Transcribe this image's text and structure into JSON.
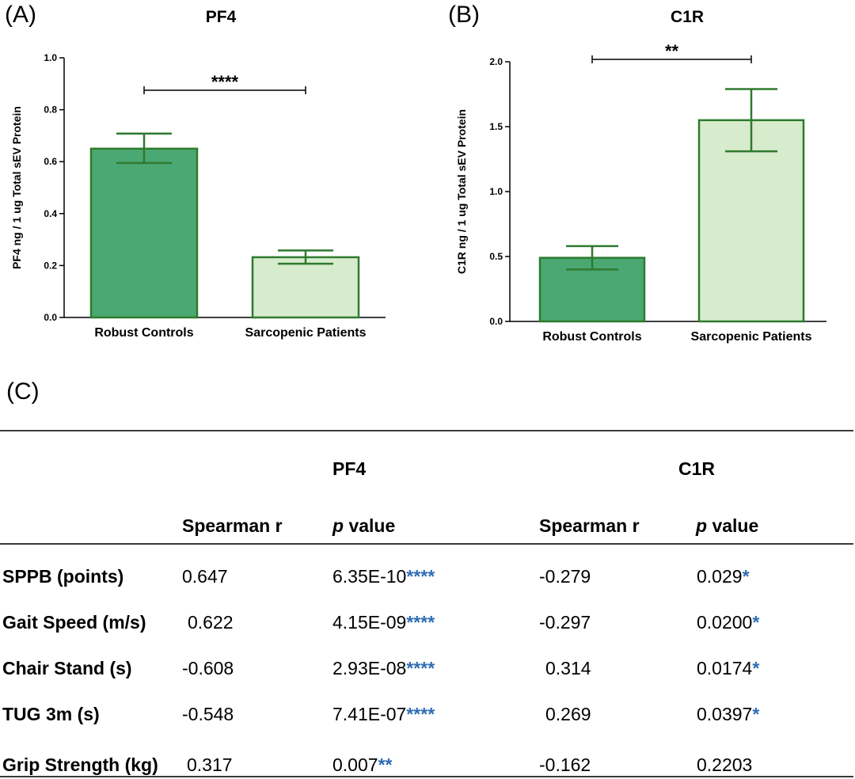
{
  "panels": {
    "a": "(A)",
    "b": "(B)",
    "c": "(C)"
  },
  "chart_data": [
    {
      "type": "bar",
      "title": "PF4",
      "ylabel": "PF4 ng / 1 ug Total sEV Protein",
      "categories": [
        "Robust Controls",
        "Sarcopenic Patients"
      ],
      "values": [
        0.65,
        0.232
      ],
      "error": [
        [
          0.595,
          0.708
        ],
        [
          0.207,
          0.258
        ]
      ],
      "ylim": [
        0,
        1.0
      ],
      "ticks": [
        0,
        0.2,
        0.4,
        0.6,
        0.8,
        1.0
      ],
      "tick_labels": [
        "0.0",
        "0.2",
        "0.4",
        "0.6",
        "0.8",
        "1.0"
      ],
      "significance": "****",
      "colors": [
        "#4aa872",
        "#d7ebcd"
      ],
      "edge": "#2f7a2f",
      "grid": false
    },
    {
      "type": "bar",
      "title": "C1R",
      "ylabel": "C1R ng / 1 ug Total sEV Protein",
      "categories": [
        "Robust Controls",
        "Sarcopenic Patients"
      ],
      "values": [
        0.49,
        1.55
      ],
      "error": [
        [
          0.4,
          0.58
        ],
        [
          1.31,
          1.79
        ]
      ],
      "ylim": [
        0,
        2.0
      ],
      "ticks": [
        0,
        0.5,
        1.0,
        1.5,
        2.0
      ],
      "tick_labels": [
        "0.0",
        "0.5",
        "1.0",
        "1.5",
        "2.0"
      ],
      "significance": "**",
      "colors": [
        "#4aa872",
        "#d7ebcd"
      ],
      "edge": "#2f7a2f",
      "grid": false
    }
  ],
  "table": {
    "groups": [
      "PF4",
      "C1R"
    ],
    "headers": [
      "Spearman r",
      "p",
      " value",
      "Spearman r",
      "p",
      " value"
    ],
    "rows": [
      {
        "label": "SPPB (points)",
        "pf4_r": "0.647",
        "pf4_p": "6.35E-10",
        "pf4_s": "****",
        "c1r_r": "-0.279",
        "c1r_p": "0.029",
        "c1r_s": "*"
      },
      {
        "label": "Gait Speed (m/s)",
        "pf4_r": "0.622",
        "pf4_p": "4.15E-09",
        "pf4_s": "****",
        "c1r_r": "-0.297",
        "c1r_p": "0.0200",
        "c1r_s": "*"
      },
      {
        "label": "Chair Stand (s)",
        "pf4_r": "-0.608",
        "pf4_p": "2.93E-08",
        "pf4_s": "****",
        "c1r_r": "0.314",
        "c1r_p": "0.0174",
        "c1r_s": "*"
      },
      {
        "label": "TUG 3m (s)",
        "pf4_r": "-0.548",
        "pf4_p": "7.41E-07",
        "pf4_s": "****",
        "c1r_r": "0.269",
        "c1r_p": "0.0397",
        "c1r_s": "*"
      },
      {
        "label": "Grip Strength (kg)",
        "pf4_r": "0.317",
        "pf4_p": "0.007",
        "pf4_s": "**",
        "c1r_r": "-0.162",
        "c1r_p": "0.2203",
        "c1r_s": ""
      }
    ]
  }
}
